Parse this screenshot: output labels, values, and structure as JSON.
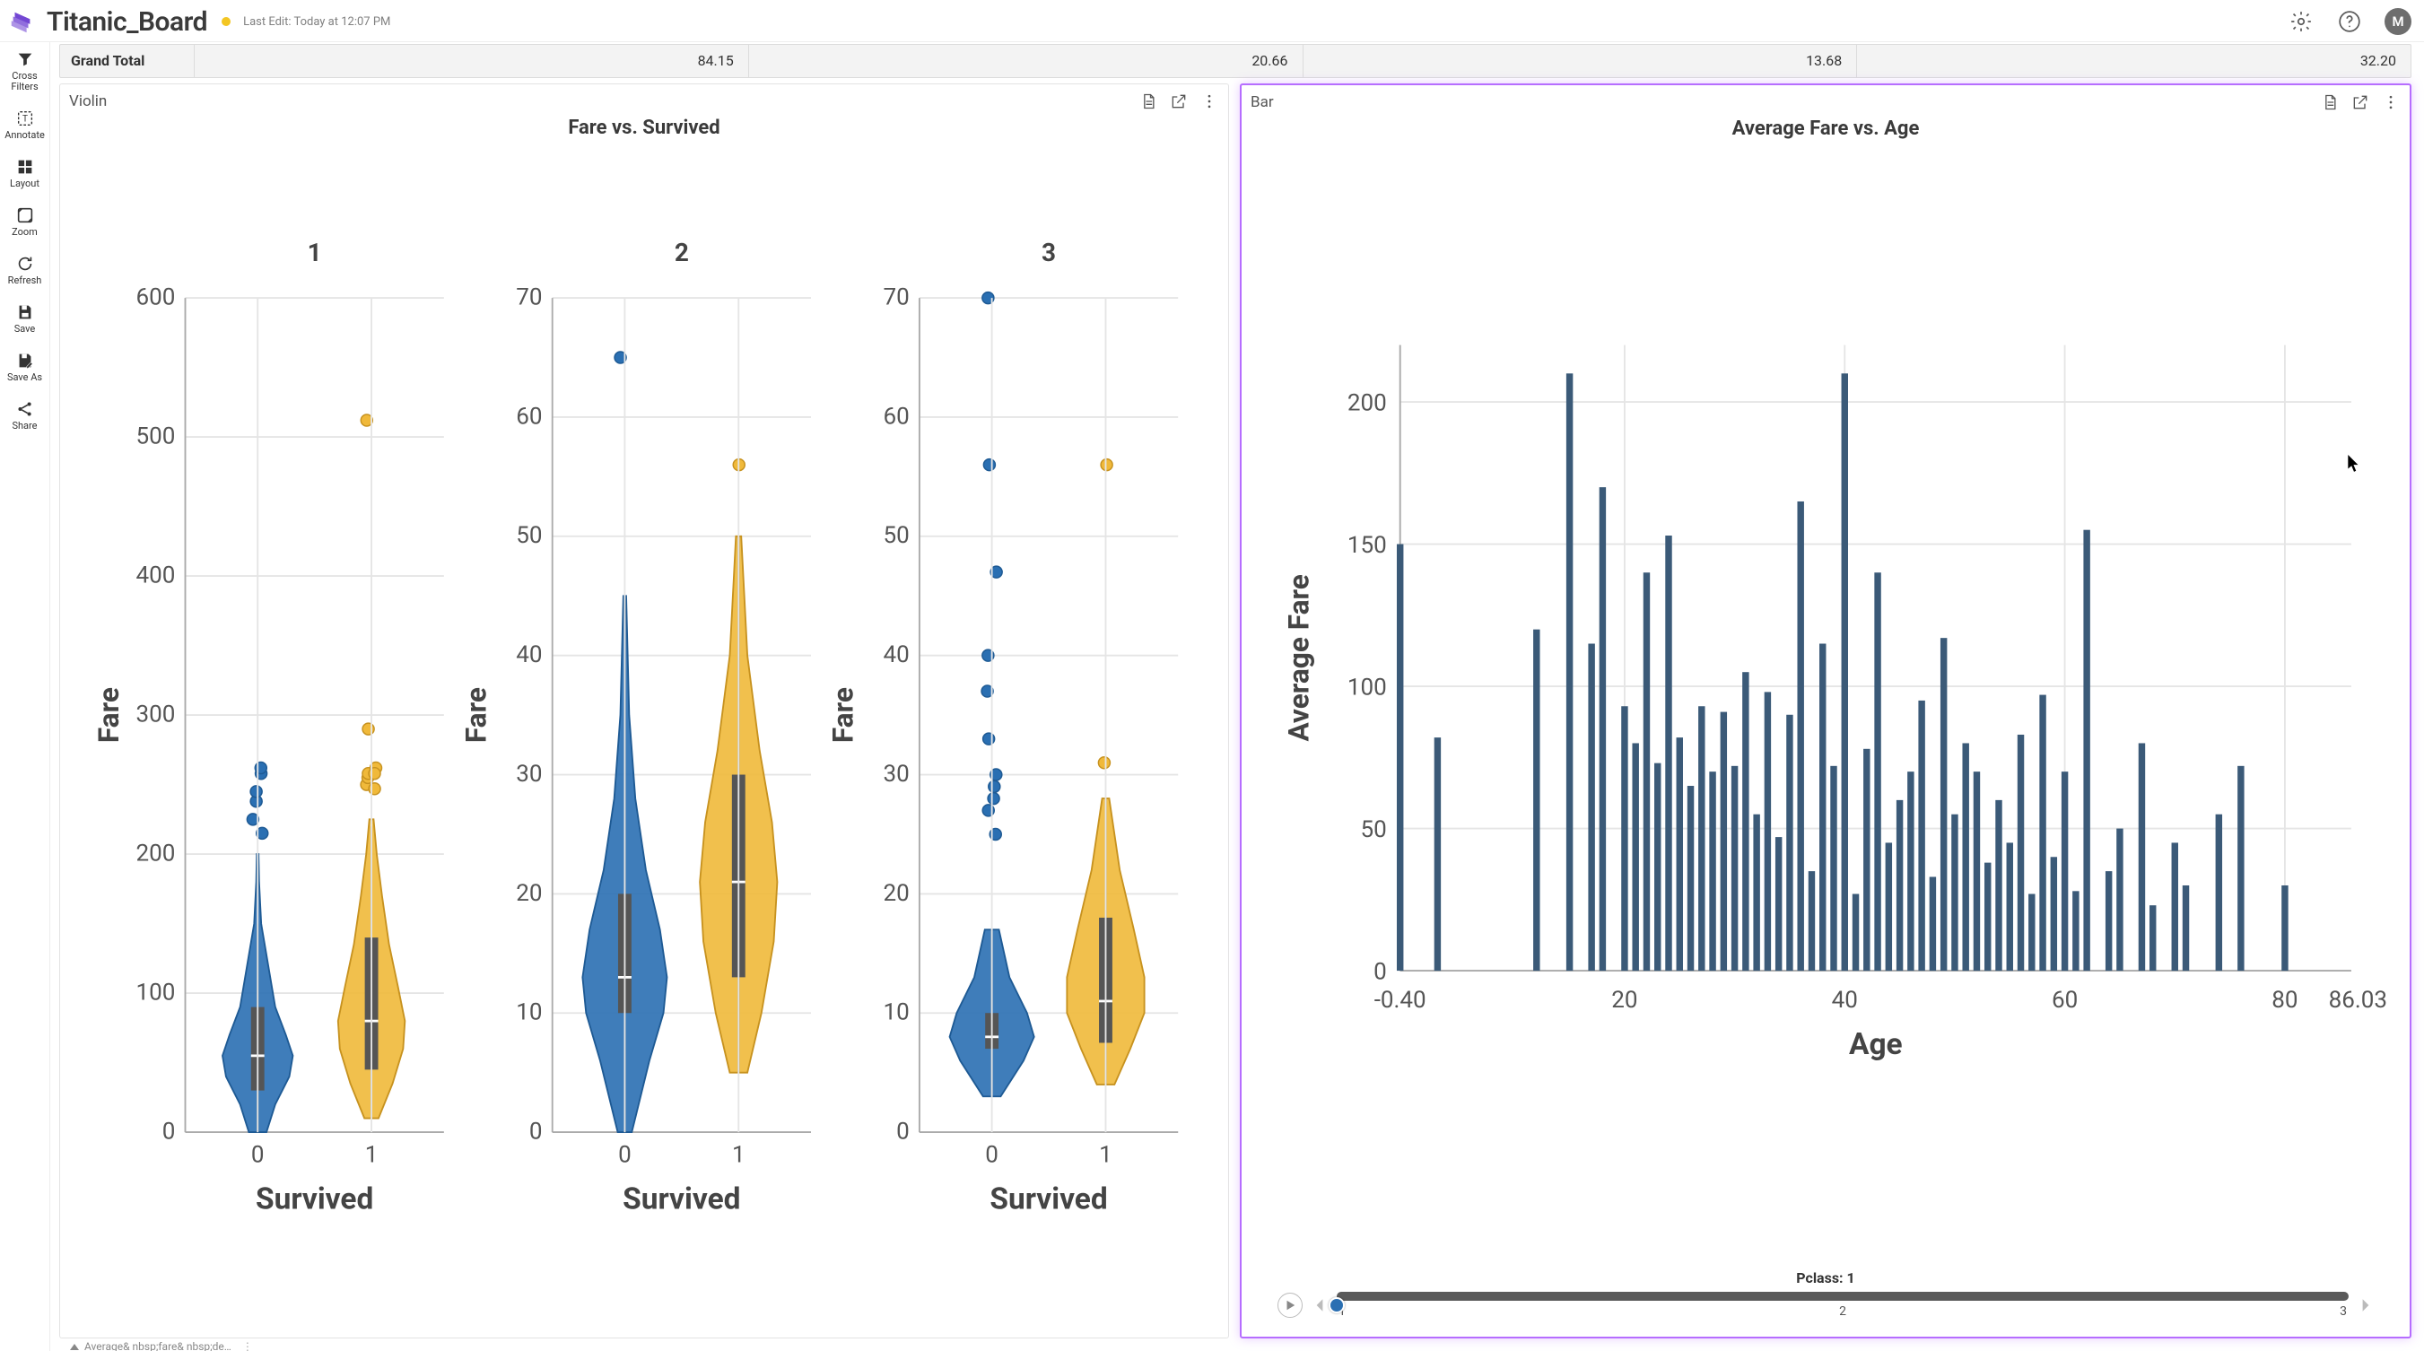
{
  "header": {
    "title": "Titanic_Board",
    "status_color": "#f3c623",
    "last_edit": "Last Edit: Today at 12:07 PM",
    "avatar_initial": "M"
  },
  "sidebar": {
    "items": [
      {
        "id": "cross-filters",
        "label": "Cross\nFilters"
      },
      {
        "id": "annotate",
        "label": "Annotate"
      },
      {
        "id": "layout",
        "label": "Layout"
      },
      {
        "id": "zoom",
        "label": "Zoom"
      },
      {
        "id": "refresh",
        "label": "Refresh"
      },
      {
        "id": "save",
        "label": "Save"
      },
      {
        "id": "save-as",
        "label": "Save As"
      },
      {
        "id": "share",
        "label": "Share"
      }
    ]
  },
  "totals": {
    "label": "Grand Total",
    "values": [
      "84.15",
      "20.66",
      "13.68",
      "32.20"
    ]
  },
  "colors": {
    "series0": "#2a6fb2",
    "series1": "#f0b93a",
    "series0_stroke": "#1e5a94",
    "series1_stroke": "#c7921f",
    "bar": "#3b5a78",
    "grid": "#e5e5e5",
    "axis": "#aaaaaa"
  },
  "violin_panel": {
    "type_label": "Violin",
    "title": "Fare vs. Survived",
    "y_label": "Fare",
    "x_label": "Survived",
    "x_ticks": [
      "0",
      "1"
    ],
    "facets": [
      {
        "head": "1",
        "y_min": 0,
        "y_max": 600,
        "y_step": 100,
        "y_ticks": [
          0,
          100,
          200,
          300,
          400,
          500,
          600
        ],
        "series": [
          {
            "iqr_lo": 30,
            "iqr_hi": 90,
            "median": 55,
            "whisker_lo": 0,
            "whisker_hi": 150,
            "profile": [
              [
                0,
                0.05
              ],
              [
                20,
                0.1
              ],
              [
                40,
                0.18
              ],
              [
                55,
                0.2
              ],
              [
                70,
                0.16
              ],
              [
                90,
                0.1
              ],
              [
                120,
                0.06
              ],
              [
                150,
                0.02
              ],
              [
                180,
                0.008
              ],
              [
                200,
                0.005
              ]
            ],
            "outliers": [
              215,
              225,
              238,
              245,
              258,
              262
            ]
          },
          {
            "iqr_lo": 45,
            "iqr_hi": 140,
            "median": 80,
            "whisker_lo": 10,
            "whisker_hi": 220,
            "profile": [
              [
                10,
                0.04
              ],
              [
                35,
                0.12
              ],
              [
                60,
                0.18
              ],
              [
                80,
                0.19
              ],
              [
                105,
                0.15
              ],
              [
                135,
                0.1
              ],
              [
                170,
                0.06
              ],
              [
                200,
                0.03
              ],
              [
                225,
                0.012
              ]
            ],
            "outliers": [
              250,
              255,
              258,
              262,
              258,
              247,
              290,
              512
            ]
          }
        ]
      },
      {
        "head": "2",
        "y_min": 0,
        "y_max": 70,
        "y_step": 10,
        "y_ticks": [
          0,
          10,
          20,
          30,
          40,
          50,
          60,
          70
        ],
        "series": [
          {
            "iqr_lo": 10,
            "iqr_hi": 20,
            "median": 13,
            "whisker_lo": 0,
            "whisker_hi": 45,
            "profile": [
              [
                0,
                0.04
              ],
              [
                6,
                0.14
              ],
              [
                10,
                0.22
              ],
              [
                13,
                0.24
              ],
              [
                17,
                0.2
              ],
              [
                22,
                0.12
              ],
              [
                28,
                0.06
              ],
              [
                35,
                0.025
              ],
              [
                45,
                0.008
              ]
            ],
            "outliers": [
              65
            ]
          },
          {
            "iqr_lo": 13,
            "iqr_hi": 30,
            "median": 21,
            "whisker_lo": 5,
            "whisker_hi": 50,
            "profile": [
              [
                5,
                0.05
              ],
              [
                10,
                0.13
              ],
              [
                16,
                0.2
              ],
              [
                21,
                0.22
              ],
              [
                26,
                0.19
              ],
              [
                32,
                0.12
              ],
              [
                40,
                0.05
              ],
              [
                50,
                0.015
              ]
            ],
            "outliers": [
              56
            ]
          }
        ]
      },
      {
        "head": "3",
        "y_min": 0,
        "y_max": 70,
        "y_step": 10,
        "y_ticks": [
          0,
          10,
          20,
          30,
          40,
          50,
          60,
          70
        ],
        "series": [
          {
            "iqr_lo": 7,
            "iqr_hi": 10,
            "median": 8,
            "whisker_lo": 3,
            "whisker_hi": 17,
            "profile": [
              [
                3,
                0.05
              ],
              [
                6,
                0.18
              ],
              [
                8,
                0.24
              ],
              [
                10,
                0.2
              ],
              [
                13,
                0.1
              ],
              [
                17,
                0.04
              ]
            ],
            "outliers": [
              25,
              27,
              28,
              29,
              30,
              33,
              37,
              40,
              47,
              56,
              70
            ]
          },
          {
            "iqr_lo": 7.5,
            "iqr_hi": 18,
            "median": 11,
            "whisker_lo": 4,
            "whisker_hi": 28,
            "profile": [
              [
                4,
                0.05
              ],
              [
                7,
                0.14
              ],
              [
                10,
                0.22
              ],
              [
                13,
                0.22
              ],
              [
                17,
                0.16
              ],
              [
                22,
                0.08
              ],
              [
                28,
                0.02
              ]
            ],
            "outliers": [
              31,
              56
            ]
          }
        ]
      }
    ]
  },
  "bar_panel": {
    "type_label": "Bar",
    "title": "Average Fare vs. Age",
    "y_label": "Average Fare",
    "x_label": "Age",
    "y_ticks": [
      0,
      50,
      100,
      150,
      200
    ],
    "x_axis": {
      "ticks": [
        -0.4,
        20,
        40,
        60,
        80
      ],
      "end_label": "86.03"
    },
    "slider": {
      "label": "Pclass:",
      "value": "1",
      "ticks": [
        "1",
        "2",
        "3"
      ],
      "thumb_pct": 0
    },
    "bars": [
      {
        "x": -0.4,
        "y": 150
      },
      {
        "x": 3,
        "y": 82
      },
      {
        "x": 12,
        "y": 120
      },
      {
        "x": 15,
        "y": 210
      },
      {
        "x": 17,
        "y": 115
      },
      {
        "x": 18,
        "y": 170
      },
      {
        "x": 20,
        "y": 93
      },
      {
        "x": 21,
        "y": 80
      },
      {
        "x": 22,
        "y": 140
      },
      {
        "x": 23,
        "y": 73
      },
      {
        "x": 24,
        "y": 153
      },
      {
        "x": 25,
        "y": 82
      },
      {
        "x": 26,
        "y": 65
      },
      {
        "x": 27,
        "y": 93
      },
      {
        "x": 28,
        "y": 70
      },
      {
        "x": 29,
        "y": 91
      },
      {
        "x": 30,
        "y": 72
      },
      {
        "x": 31,
        "y": 105
      },
      {
        "x": 32,
        "y": 55
      },
      {
        "x": 33,
        "y": 98
      },
      {
        "x": 34,
        "y": 47
      },
      {
        "x": 35,
        "y": 90
      },
      {
        "x": 36,
        "y": 165
      },
      {
        "x": 37,
        "y": 35
      },
      {
        "x": 38,
        "y": 115
      },
      {
        "x": 39,
        "y": 72
      },
      {
        "x": 40,
        "y": 210
      },
      {
        "x": 41,
        "y": 27
      },
      {
        "x": 42,
        "y": 78
      },
      {
        "x": 43,
        "y": 140
      },
      {
        "x": 44,
        "y": 45
      },
      {
        "x": 45,
        "y": 60
      },
      {
        "x": 46,
        "y": 70
      },
      {
        "x": 47,
        "y": 95
      },
      {
        "x": 48,
        "y": 33
      },
      {
        "x": 49,
        "y": 117
      },
      {
        "x": 50,
        "y": 55
      },
      {
        "x": 51,
        "y": 80
      },
      {
        "x": 52,
        "y": 70
      },
      {
        "x": 53,
        "y": 38
      },
      {
        "x": 54,
        "y": 60
      },
      {
        "x": 55,
        "y": 45
      },
      {
        "x": 56,
        "y": 83
      },
      {
        "x": 57,
        "y": 27
      },
      {
        "x": 58,
        "y": 97
      },
      {
        "x": 59,
        "y": 40
      },
      {
        "x": 60,
        "y": 70
      },
      {
        "x": 61,
        "y": 28
      },
      {
        "x": 62,
        "y": 155
      },
      {
        "x": 64,
        "y": 35
      },
      {
        "x": 65,
        "y": 50
      },
      {
        "x": 67,
        "y": 80
      },
      {
        "x": 68,
        "y": 23
      },
      {
        "x": 70,
        "y": 45
      },
      {
        "x": 71,
        "y": 30
      },
      {
        "x": 74,
        "y": 55
      },
      {
        "x": 76,
        "y": 72
      },
      {
        "x": 80,
        "y": 30
      },
      {
        "x": 86.03,
        "y": 0
      }
    ]
  },
  "footer_text": "Average& nbsp;fare& nbsp;de…",
  "cursor": {
    "left_pct": 96.8,
    "top_pct": 31.5
  }
}
